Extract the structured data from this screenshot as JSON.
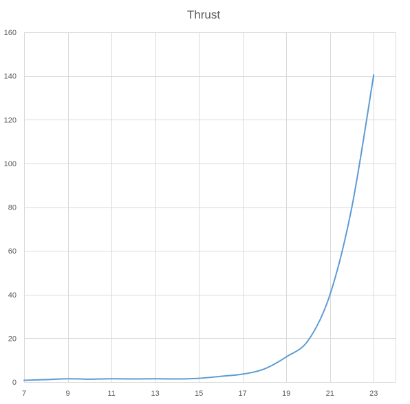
{
  "chart_data": {
    "type": "line",
    "title": "Thrust",
    "xlabel": "",
    "ylabel": "",
    "xlim": [
      7,
      24
    ],
    "ylim": [
      0,
      160
    ],
    "x_ticks": [
      7,
      9,
      11,
      13,
      15,
      17,
      19,
      21,
      23
    ],
    "y_ticks": [
      0,
      20,
      40,
      60,
      80,
      100,
      120,
      140,
      160
    ],
    "grid": true,
    "legend": "none",
    "series": [
      {
        "x": [
          7,
          8,
          9,
          10,
          11,
          12,
          13,
          14,
          15,
          16,
          17,
          18,
          19,
          20,
          21,
          22,
          23
        ],
        "y": [
          0.8,
          1.1,
          1.5,
          1.3,
          1.5,
          1.4,
          1.5,
          1.4,
          1.7,
          2.6,
          3.6,
          6.0,
          11.5,
          19.0,
          40.0,
          80.0,
          140.5
        ]
      }
    ],
    "colors": {
      "line": "#5b9bd5",
      "grid": "#d9d9d9",
      "text": "#595959"
    }
  }
}
